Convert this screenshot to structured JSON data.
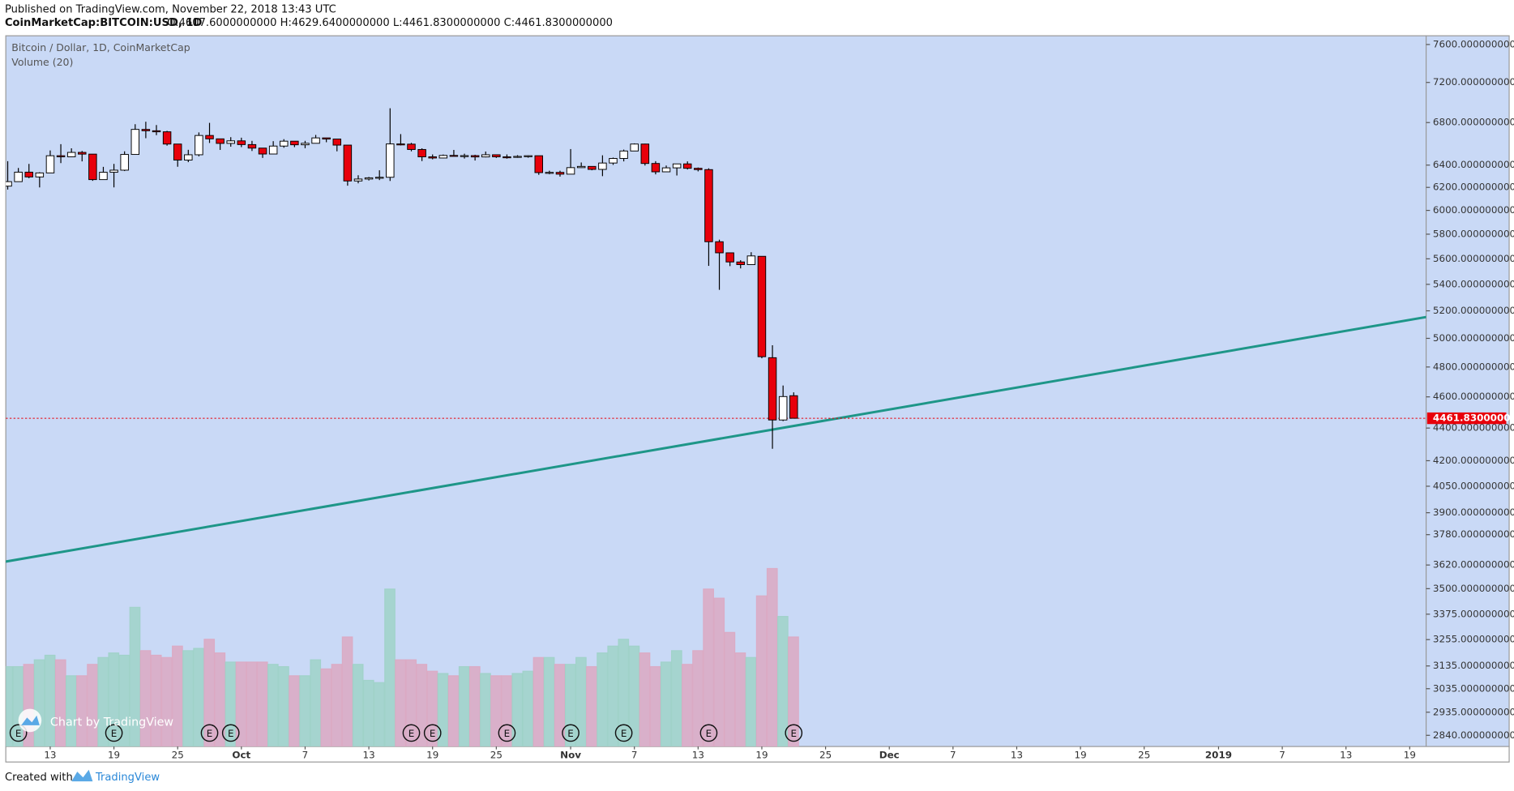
{
  "header": {
    "published": "Published on TradingView.com, November 22, 2018 13:43 UTC",
    "symbol": "CoinMarketCap:BITCOIN:USD, 1D",
    "ohlc": "O:4607.6000000000 H:4629.6400000000 L:4461.8300000000 C:4461.8300000000"
  },
  "footer": {
    "created": "Created with",
    "brand": "TradingView"
  },
  "chart_data": {
    "type": "candlestick",
    "title": "Bitcoin / Dollar, 1D, CoinMarketCap",
    "subtitle": "Volume (20)",
    "watermark": "Chart by TradingView",
    "log_scale": true,
    "grid": false,
    "background": "#c9d9f6",
    "up_color": "#ffffff",
    "down_color": "#e8000b",
    "volume_up_color": "#9fd2c8",
    "volume_down_color": "#dca8c2",
    "ylim": [
      2795,
      7695
    ],
    "yticks": [
      {
        "value": 7600,
        "label": "7600.0000000000"
      },
      {
        "value": 7200,
        "label": "7200.0000000000"
      },
      {
        "value": 6800,
        "label": "6800.0000000000"
      },
      {
        "value": 6400,
        "label": "6400.0000000000"
      },
      {
        "value": 6200,
        "label": "6200.0000000000"
      },
      {
        "value": 6000,
        "label": "6000.0000000000"
      },
      {
        "value": 5800,
        "label": "5800.0000000000"
      },
      {
        "value": 5600,
        "label": "5600.0000000000"
      },
      {
        "value": 5400,
        "label": "5400.0000000000"
      },
      {
        "value": 5200,
        "label": "5200.0000000000"
      },
      {
        "value": 5000,
        "label": "5000.0000000000"
      },
      {
        "value": 4800,
        "label": "4800.0000000000"
      },
      {
        "value": 4600,
        "label": "4600.0000000000"
      },
      {
        "value": 4400,
        "label": "4400.0000000000"
      },
      {
        "value": 4200,
        "label": "4200.0000000000"
      },
      {
        "value": 4050,
        "label": "4050.0000000000"
      },
      {
        "value": 3900,
        "label": "3900.0000000000"
      },
      {
        "value": 3780,
        "label": "3780.0000000000"
      },
      {
        "value": 3620,
        "label": "3620.0000000000"
      },
      {
        "value": 3500,
        "label": "3500.0000000000"
      },
      {
        "value": 3375,
        "label": "3375.0000000000"
      },
      {
        "value": 3255,
        "label": "3255.0000000000"
      },
      {
        "value": 3135,
        "label": "3135.0000000000"
      },
      {
        "value": 3035,
        "label": "3035.0000000000"
      },
      {
        "value": 2935,
        "label": "2935.0000000000"
      },
      {
        "value": 2840,
        "label": "2840.0000000000"
      }
    ],
    "xticks": [
      {
        "value": "2018-09-13",
        "label": "13"
      },
      {
        "value": "2018-09-19",
        "label": "19"
      },
      {
        "value": "2018-09-25",
        "label": "25"
      },
      {
        "value": "2018-10-01",
        "label": "Oct"
      },
      {
        "value": "2018-10-07",
        "label": "7"
      },
      {
        "value": "2018-10-13",
        "label": "13"
      },
      {
        "value": "2018-10-19",
        "label": "19"
      },
      {
        "value": "2018-10-25",
        "label": "25"
      },
      {
        "value": "2018-11-01",
        "label": "Nov"
      },
      {
        "value": "2018-11-07",
        "label": "7"
      },
      {
        "value": "2018-11-13",
        "label": "13"
      },
      {
        "value": "2018-11-19",
        "label": "19"
      },
      {
        "value": "2018-11-25",
        "label": "25"
      },
      {
        "value": "2018-12-01",
        "label": "Dec"
      },
      {
        "value": "2018-12-07",
        "label": "7"
      },
      {
        "value": "2018-12-13",
        "label": "13"
      },
      {
        "value": "2018-12-19",
        "label": "19"
      },
      {
        "value": "2018-12-25",
        "label": "25"
      },
      {
        "value": "2019-01-01",
        "label": "2019"
      },
      {
        "value": "2019-01-07",
        "label": "7"
      },
      {
        "value": "2019-01-13",
        "label": "13"
      },
      {
        "value": "2019-01-19",
        "label": "19"
      }
    ],
    "x": [
      "2018-09-09",
      "2018-09-10",
      "2018-09-11",
      "2018-09-12",
      "2018-09-13",
      "2018-09-14",
      "2018-09-15",
      "2018-09-16",
      "2018-09-17",
      "2018-09-18",
      "2018-09-19",
      "2018-09-20",
      "2018-09-21",
      "2018-09-22",
      "2018-09-23",
      "2018-09-24",
      "2018-09-25",
      "2018-09-26",
      "2018-09-27",
      "2018-09-28",
      "2018-09-29",
      "2018-09-30",
      "2018-10-01",
      "2018-10-02",
      "2018-10-03",
      "2018-10-04",
      "2018-10-05",
      "2018-10-06",
      "2018-10-07",
      "2018-10-08",
      "2018-10-09",
      "2018-10-10",
      "2018-10-11",
      "2018-10-12",
      "2018-10-13",
      "2018-10-14",
      "2018-10-15",
      "2018-10-16",
      "2018-10-17",
      "2018-10-18",
      "2018-10-19",
      "2018-10-20",
      "2018-10-21",
      "2018-10-22",
      "2018-10-23",
      "2018-10-24",
      "2018-10-25",
      "2018-10-26",
      "2018-10-27",
      "2018-10-28",
      "2018-10-29",
      "2018-10-30",
      "2018-10-31",
      "2018-11-01",
      "2018-11-02",
      "2018-11-03",
      "2018-11-04",
      "2018-11-05",
      "2018-11-06",
      "2018-11-07",
      "2018-11-08",
      "2018-11-09",
      "2018-11-10",
      "2018-11-11",
      "2018-11-12",
      "2018-11-13",
      "2018-11-14",
      "2018-11-15",
      "2018-11-16",
      "2018-11-17",
      "2018-11-18",
      "2018-11-19",
      "2018-11-20",
      "2018-11-21",
      "2018-11-22"
    ],
    "open": [
      6211,
      6251,
      6336,
      6293,
      6329,
      6486,
      6476,
      6517,
      6501,
      6269,
      6335,
      6354,
      6498,
      6734,
      6721,
      6711,
      6595,
      6446,
      6495,
      6676,
      6644,
      6601,
      6625,
      6590,
      6557,
      6502,
      6576,
      6622,
      6588,
      6602,
      6653,
      6642,
      6585,
      6257,
      6274,
      6285,
      6290,
      6596,
      6594,
      6544,
      6476,
      6465,
      6489,
      6482,
      6487,
      6475,
      6495,
      6476,
      6474,
      6480,
      6486,
      6332,
      6334,
      6318,
      6377,
      6388,
      6361,
      6419,
      6461,
      6530,
      6595,
      6415,
      6339,
      6375,
      6411,
      6371,
      6359,
      5738,
      5648,
      5575,
      5554,
      5620,
      4864,
      4451,
      4607.6
    ],
    "high": [
      6436,
      6374,
      6411,
      6335,
      6535,
      6594,
      6555,
      6530,
      6502,
      6384,
      6411,
      6527,
      6784,
      6808,
      6776,
      6720,
      6595,
      6541,
      6705,
      6797,
      6644,
      6660,
      6655,
      6625,
      6557,
      6622,
      6641,
      6622,
      6625,
      6681,
      6653,
      6642,
      6585,
      6308,
      6293,
      6353,
      6940,
      6689,
      6606,
      6555,
      6498,
      6497,
      6540,
      6505,
      6495,
      6525,
      6498,
      6498,
      6491,
      6489,
      6486,
      6349,
      6349,
      6548,
      6424,
      6389,
      6490,
      6469,
      6543,
      6601,
      6598,
      6436,
      6396,
      6411,
      6434,
      6378,
      6371,
      5755,
      5648,
      5589,
      5653,
      5621,
      4951,
      4675,
      4629.64
    ],
    "low": [
      6181,
      6251,
      6282,
      6200,
      6329,
      6418,
      6476,
      6434,
      6258,
      6269,
      6200,
      6346,
      6498,
      6650,
      6679,
      6580,
      6385,
      6427,
      6480,
      6605,
      6540,
      6570,
      6566,
      6530,
      6466,
      6502,
      6560,
      6566,
      6556,
      6602,
      6612,
      6527,
      6215,
      6236,
      6261,
      6265,
      6257,
      6582,
      6527,
      6437,
      6453,
      6462,
      6480,
      6460,
      6442,
      6471,
      6466,
      6459,
      6467,
      6468,
      6312,
      6317,
      6296,
      6318,
      6375,
      6353,
      6300,
      6402,
      6434,
      6530,
      6396,
      6316,
      6339,
      6306,
      6360,
      6343,
      5544,
      5358,
      5542,
      5524,
      5554,
      4860,
      4272,
      4444,
      4461.83
    ],
    "close": [
      6251,
      6336,
      6293,
      6329,
      6486,
      6476,
      6517,
      6501,
      6269,
      6335,
      6354,
      6498,
      6734,
      6721,
      6711,
      6595,
      6446,
      6495,
      6676,
      6644,
      6601,
      6625,
      6590,
      6557,
      6502,
      6576,
      6622,
      6588,
      6602,
      6653,
      6642,
      6585,
      6257,
      6274,
      6285,
      6290,
      6596,
      6594,
      6544,
      6476,
      6465,
      6489,
      6482,
      6487,
      6475,
      6495,
      6476,
      6474,
      6480,
      6486,
      6332,
      6334,
      6318,
      6377,
      6388,
      6361,
      6419,
      6461,
      6530,
      6595,
      6415,
      6339,
      6375,
      6411,
      6371,
      6359,
      5738,
      5648,
      5575,
      5554,
      5623,
      4871,
      4451,
      4602,
      4461.83
    ],
    "volume": [
      3.5,
      3.5,
      3.6,
      3.8,
      4.0,
      3.8,
      3.1,
      3.1,
      3.6,
      3.9,
      4.1,
      4.0,
      6.1,
      4.2,
      4.0,
      3.9,
      4.4,
      4.2,
      4.3,
      4.7,
      4.1,
      3.7,
      3.7,
      3.7,
      3.7,
      3.6,
      3.5,
      3.1,
      3.1,
      3.8,
      3.4,
      3.6,
      4.8,
      3.6,
      2.9,
      2.8,
      6.9,
      3.8,
      3.8,
      3.6,
      3.3,
      3.2,
      3.1,
      3.5,
      3.5,
      3.2,
      3.1,
      3.1,
      3.2,
      3.3,
      3.9,
      3.9,
      3.6,
      3.6,
      3.9,
      3.5,
      4.1,
      4.4,
      4.7,
      4.4,
      4.1,
      3.5,
      3.7,
      4.2,
      3.6,
      4.2,
      6.9,
      6.5,
      5.0,
      4.1,
      3.9,
      6.6,
      7.8,
      5.7,
      4.8
    ],
    "volume_ylim": [
      0,
      10
    ],
    "trend_line": {
      "x": [
        "2018-09-08",
        "2019-01-21"
      ],
      "y": [
        3630,
        5160
      ],
      "color": "#1e9688"
    },
    "last_price": {
      "value": 4461.83,
      "label": "4461.8300000000",
      "color": "#e8000b"
    },
    "events": [
      {
        "x": "2018-09-10",
        "label": "E"
      },
      {
        "x": "2018-09-19",
        "label": "E"
      },
      {
        "x": "2018-09-28",
        "label": "E"
      },
      {
        "x": "2018-09-30",
        "label": "E"
      },
      {
        "x": "2018-10-17",
        "label": "E"
      },
      {
        "x": "2018-10-19",
        "label": "E"
      },
      {
        "x": "2018-10-26",
        "label": "E"
      },
      {
        "x": "2018-11-01",
        "label": "E"
      },
      {
        "x": "2018-11-06",
        "label": "E"
      },
      {
        "x": "2018-11-14",
        "label": "E"
      },
      {
        "x": "2018-11-22",
        "label": "E"
      }
    ]
  }
}
